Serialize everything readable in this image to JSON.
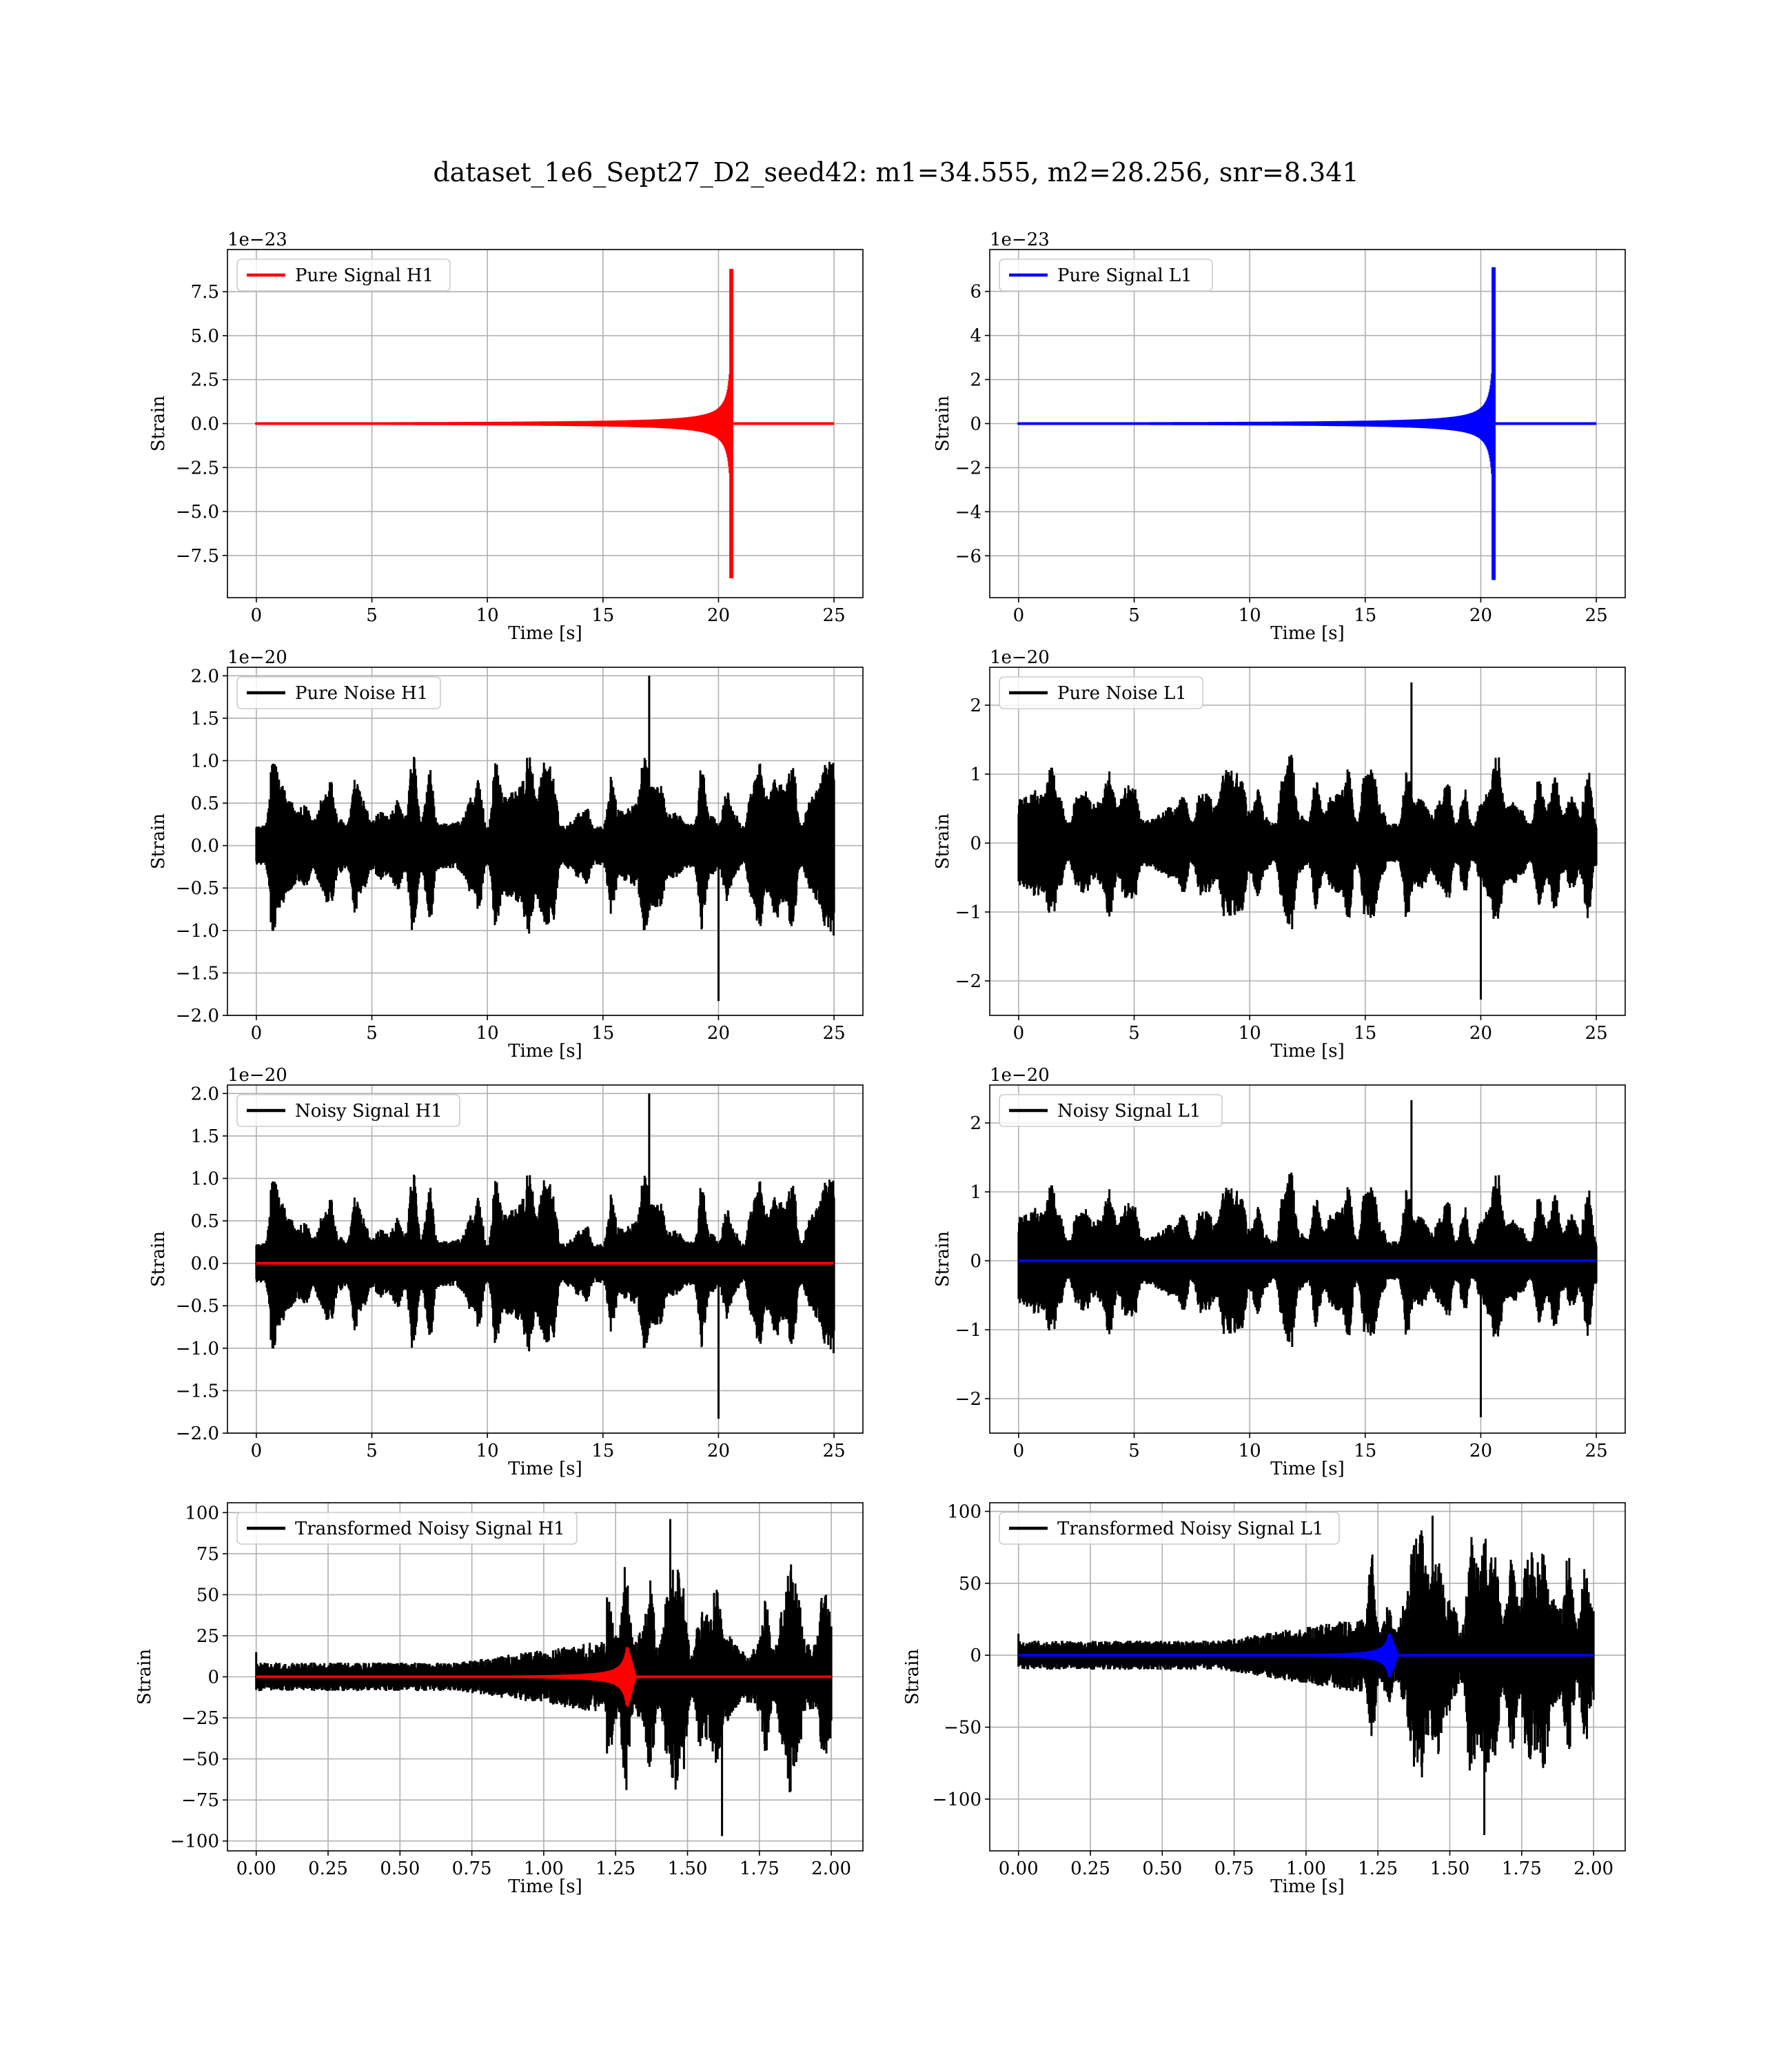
{
  "figure": {
    "title": "dataset_1e6_Sept27_D2_seed42: m1=34.555, m2=28.256, snr=8.341"
  },
  "chart_data": [
    {
      "id": "h1-signal",
      "type": "line",
      "xlabel": "Time [s]",
      "ylabel": "Strain",
      "offset_text": "1e−23",
      "xlim": [
        -1.25,
        26.25
      ],
      "ylim": [
        -9.9,
        9.9
      ],
      "xticks": [
        0,
        5,
        10,
        15,
        20,
        25
      ],
      "xtick_labels": [
        "0",
        "5",
        "10",
        "15",
        "20",
        "25"
      ],
      "yticks": [
        -7.5,
        -5,
        -2.5,
        0,
        2.5,
        5,
        7.5
      ],
      "ytick_labels": [
        "−7.5",
        "−5.0",
        "−2.5",
        "0.0",
        "2.5",
        "5.0",
        "7.5"
      ],
      "grid": true,
      "legend_loc": "upper left",
      "series": [
        {
          "name": "Pure Signal H1",
          "color": "#ff0000",
          "kind": "chirp",
          "x_start": 0,
          "x_end": 25,
          "t_merge": 20.6,
          "peak": 8.8,
          "in_legend": true
        }
      ]
    },
    {
      "id": "l1-signal",
      "type": "line",
      "xlabel": "Time [s]",
      "ylabel": "Strain",
      "offset_text": "1e−23",
      "xlim": [
        -1.25,
        26.25
      ],
      "ylim": [
        -7.9,
        7.9
      ],
      "xticks": [
        0,
        5,
        10,
        15,
        20,
        25
      ],
      "xtick_labels": [
        "0",
        "5",
        "10",
        "15",
        "20",
        "25"
      ],
      "yticks": [
        -6,
        -4,
        -2,
        0,
        2,
        4,
        6
      ],
      "ytick_labels": [
        "−6",
        "−4",
        "−2",
        "0",
        "2",
        "4",
        "6"
      ],
      "grid": true,
      "legend_loc": "upper left",
      "series": [
        {
          "name": "Pure Signal L1",
          "color": "#0000ff",
          "kind": "chirp",
          "x_start": 0,
          "x_end": 25,
          "t_merge": 20.6,
          "peak": 7.1,
          "in_legend": true
        }
      ]
    },
    {
      "id": "h1-noise",
      "type": "line",
      "xlabel": "Time [s]",
      "ylabel": "Strain",
      "offset_text": "1e−20",
      "xlim": [
        -1.25,
        26.25
      ],
      "ylim": [
        -2.0,
        2.1
      ],
      "xticks": [
        0,
        5,
        10,
        15,
        20,
        25
      ],
      "xtick_labels": [
        "0",
        "5",
        "10",
        "15",
        "20",
        "25"
      ],
      "yticks": [
        -2,
        -1.5,
        -1,
        -0.5,
        0,
        0.5,
        1,
        1.5,
        2
      ],
      "ytick_labels": [
        "−2.0",
        "−1.5",
        "−1.0",
        "−0.5",
        "0.0",
        "0.5",
        "1.0",
        "1.5",
        "2.0"
      ],
      "grid": true,
      "legend_loc": "upper left",
      "series": [
        {
          "name": "Pure Noise H1",
          "color": "#000000",
          "kind": "noise",
          "x_start": 0,
          "x_end": 25,
          "amp": 0.9,
          "max": 2.0,
          "min": -1.83,
          "seed": 7,
          "in_legend": true
        }
      ]
    },
    {
      "id": "l1-noise",
      "type": "line",
      "xlabel": "Time [s]",
      "ylabel": "Strain",
      "offset_text": "1e−20",
      "xlim": [
        -1.25,
        26.25
      ],
      "ylim": [
        -2.5,
        2.55
      ],
      "xticks": [
        0,
        5,
        10,
        15,
        20,
        25
      ],
      "xtick_labels": [
        "0",
        "5",
        "10",
        "15",
        "20",
        "25"
      ],
      "yticks": [
        -2,
        -1,
        0,
        1,
        2
      ],
      "ytick_labels": [
        "−2",
        "−1",
        "0",
        "1",
        "2"
      ],
      "grid": true,
      "legend_loc": "upper left",
      "series": [
        {
          "name": "Pure Noise L1",
          "color": "#000000",
          "kind": "noise",
          "x_start": 0,
          "x_end": 25,
          "amp": 1.1,
          "max": 2.33,
          "min": -2.27,
          "seed": 11,
          "in_legend": true
        }
      ]
    },
    {
      "id": "h1-noisy",
      "type": "line",
      "xlabel": "Time [s]",
      "ylabel": "Strain",
      "offset_text": "1e−20",
      "xlim": [
        -1.25,
        26.25
      ],
      "ylim": [
        -2.0,
        2.1
      ],
      "xticks": [
        0,
        5,
        10,
        15,
        20,
        25
      ],
      "xtick_labels": [
        "0",
        "5",
        "10",
        "15",
        "20",
        "25"
      ],
      "yticks": [
        -2,
        -1.5,
        -1,
        -0.5,
        0,
        0.5,
        1,
        1.5,
        2
      ],
      "ytick_labels": [
        "−2.0",
        "−1.5",
        "−1.0",
        "−0.5",
        "0.0",
        "0.5",
        "1.0",
        "1.5",
        "2.0"
      ],
      "grid": true,
      "legend_loc": "upper left",
      "series": [
        {
          "name": "Noisy Signal H1",
          "color": "#000000",
          "kind": "noise",
          "x_start": 0,
          "x_end": 25,
          "amp": 0.9,
          "max": 2.0,
          "min": -1.83,
          "seed": 7,
          "in_legend": true
        },
        {
          "name": "",
          "color": "#ff0000",
          "kind": "flat",
          "x_start": 0,
          "x_end": 25,
          "value": 0,
          "in_legend": false
        }
      ]
    },
    {
      "id": "l1-noisy",
      "type": "line",
      "xlabel": "Time [s]",
      "ylabel": "Strain",
      "offset_text": "1e−20",
      "xlim": [
        -1.25,
        26.25
      ],
      "ylim": [
        -2.5,
        2.55
      ],
      "xticks": [
        0,
        5,
        10,
        15,
        20,
        25
      ],
      "xtick_labels": [
        "0",
        "5",
        "10",
        "15",
        "20",
        "25"
      ],
      "yticks": [
        -2,
        -1,
        0,
        1,
        2
      ],
      "ytick_labels": [
        "−2",
        "−1",
        "0",
        "1",
        "2"
      ],
      "grid": true,
      "legend_loc": "upper left",
      "series": [
        {
          "name": "Noisy Signal L1",
          "color": "#000000",
          "kind": "noise",
          "x_start": 0,
          "x_end": 25,
          "amp": 1.1,
          "max": 2.33,
          "min": -2.27,
          "seed": 11,
          "in_legend": true
        },
        {
          "name": "",
          "color": "#0000ff",
          "kind": "flat",
          "x_start": 0,
          "x_end": 25,
          "value": 0,
          "in_legend": false
        }
      ]
    },
    {
      "id": "h1-transformed",
      "type": "line",
      "xlabel": "Time [s]",
      "ylabel": "Strain",
      "offset_text": "",
      "xlim": [
        -0.1,
        2.11
      ],
      "ylim": [
        -106,
        106
      ],
      "xticks": [
        0,
        0.25,
        0.5,
        0.75,
        1.0,
        1.25,
        1.5,
        1.75,
        2.0
      ],
      "xtick_labels": [
        "0.00",
        "0.25",
        "0.50",
        "0.75",
        "1.00",
        "1.25",
        "1.50",
        "1.75",
        "2.00"
      ],
      "yticks": [
        -100,
        -75,
        -50,
        -25,
        0,
        25,
        50,
        75,
        100
      ],
      "ytick_labels": [
        "−100",
        "−75",
        "−50",
        "−25",
        "0",
        "25",
        "50",
        "75",
        "100"
      ],
      "grid": true,
      "legend_loc": "upper left",
      "series": [
        {
          "name": "Transformed Noisy Signal H1",
          "color": "#000000",
          "kind": "whitened",
          "x_start": 0,
          "x_end": 2.0,
          "switch_at": 1.22,
          "low_amp": 6,
          "high_amp": 42,
          "max": 96,
          "min": -97,
          "seed": 23,
          "in_legend": true
        },
        {
          "name": "",
          "color": "#ff0000",
          "kind": "burst",
          "x_start": 0,
          "x_end": 2.0,
          "t_merge": 1.29,
          "peak": 19,
          "in_legend": false
        }
      ]
    },
    {
      "id": "l1-transformed",
      "type": "line",
      "xlabel": "Time [s]",
      "ylabel": "Strain",
      "offset_text": "",
      "xlim": [
        -0.1,
        2.11
      ],
      "ylim": [
        -136,
        106
      ],
      "xticks": [
        0,
        0.25,
        0.5,
        0.75,
        1.0,
        1.25,
        1.5,
        1.75,
        2.0
      ],
      "xtick_labels": [
        "0.00",
        "0.25",
        "0.50",
        "0.75",
        "1.00",
        "1.25",
        "1.50",
        "1.75",
        "2.00"
      ],
      "yticks": [
        -100,
        -50,
        0,
        50,
        100
      ],
      "ytick_labels": [
        "−100",
        "−50",
        "0",
        "50",
        "100"
      ],
      "grid": true,
      "legend_loc": "upper left",
      "series": [
        {
          "name": "Transformed Noisy Signal L1",
          "color": "#000000",
          "kind": "whitened",
          "x_start": 0,
          "x_end": 2.0,
          "switch_at": 1.2,
          "low_amp": 7,
          "high_amp": 48,
          "max": 97,
          "min": -125,
          "seed": 31,
          "in_legend": true
        },
        {
          "name": "",
          "color": "#0000ff",
          "kind": "burst",
          "x_start": 0,
          "x_end": 2.0,
          "t_merge": 1.29,
          "peak": 16,
          "in_legend": false
        }
      ]
    }
  ]
}
